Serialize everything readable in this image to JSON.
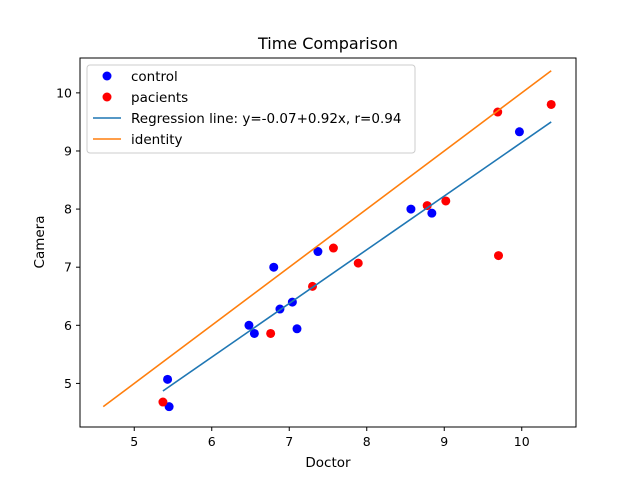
{
  "chart_data": {
    "type": "scatter",
    "title": "Time Comparison",
    "xlabel": "Doctor",
    "ylabel": "Camera",
    "xlim": [
      4.3,
      10.7
    ],
    "ylim": [
      4.25,
      10.6
    ],
    "xticks": [
      5,
      6,
      7,
      8,
      9,
      10
    ],
    "yticks": [
      5,
      6,
      7,
      8,
      9,
      10
    ],
    "grid": false,
    "legend_position": "top-left",
    "series": [
      {
        "name": "control",
        "kind": "scatter",
        "color": "#0000ff",
        "x": [
          5.43,
          5.45,
          6.48,
          6.55,
          6.8,
          6.88,
          7.04,
          7.1,
          7.37,
          8.57,
          8.84,
          9.97
        ],
        "y": [
          5.07,
          4.6,
          6.0,
          5.86,
          7.0,
          6.28,
          6.4,
          5.94,
          7.27,
          8.0,
          7.93,
          9.33
        ]
      },
      {
        "name": "pacients",
        "kind": "scatter",
        "color": "#ff0000",
        "x": [
          5.37,
          6.76,
          7.3,
          7.57,
          7.89,
          8.78,
          9.02,
          9.69,
          9.7,
          10.38
        ],
        "y": [
          4.68,
          5.86,
          6.67,
          7.33,
          7.07,
          8.06,
          8.14,
          9.67,
          7.2,
          9.8
        ]
      },
      {
        "name": "Regression line: y=-0.07+0.92x, r=0.94",
        "kind": "line",
        "color": "#1f77b4",
        "x": [
          5.37,
          10.38
        ],
        "y": [
          4.87,
          9.5
        ]
      },
      {
        "name": "identity",
        "kind": "line",
        "color": "#ff7f0e",
        "x": [
          4.6,
          10.38
        ],
        "y": [
          4.6,
          10.38
        ]
      }
    ]
  }
}
